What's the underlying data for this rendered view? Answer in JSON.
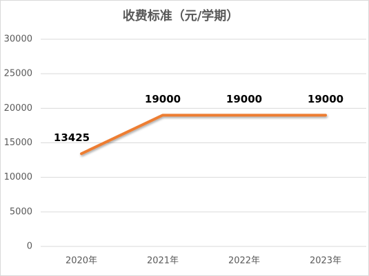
{
  "chart_data": {
    "type": "line",
    "title": "收费标准（元/学期）",
    "categories": [
      "2020年",
      "2021年",
      "2022年",
      "2023年"
    ],
    "values": [
      13425,
      19000,
      19000,
      19000
    ],
    "color": "#ed7d31",
    "ylim": [
      0,
      30000
    ],
    "yticks": [
      0,
      5000,
      10000,
      15000,
      20000,
      25000,
      30000
    ],
    "grid": true,
    "data_labels": true
  }
}
